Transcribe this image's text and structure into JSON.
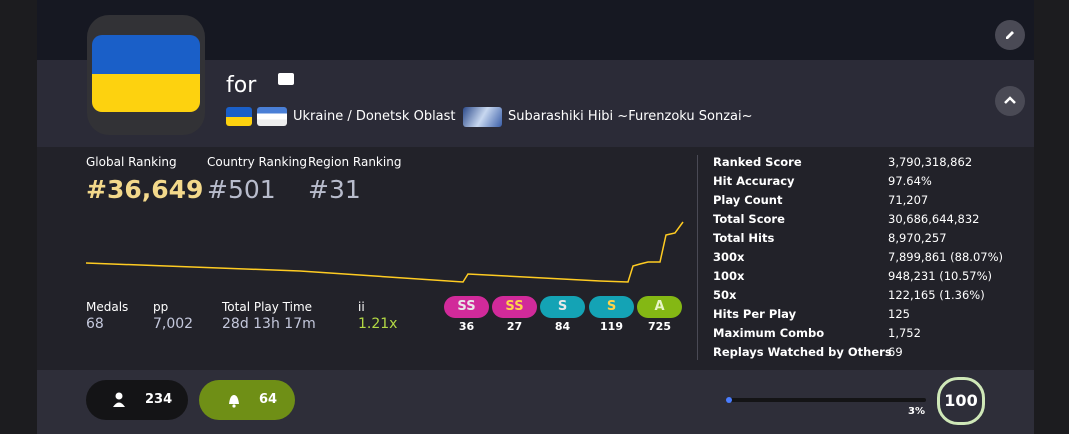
{
  "header": {
    "username": "for",
    "location": "Ukraine / Donetsk Oblast",
    "team": "Subarashiki Hibi ~Furenzoku Sonzai~"
  },
  "rankings": [
    {
      "label": "Global Ranking",
      "value": "#36,649"
    },
    {
      "label": "Country Ranking",
      "value": "#501"
    },
    {
      "label": "Region Ranking",
      "value": "#31"
    }
  ],
  "summary": [
    {
      "label": "Medals",
      "value": "68"
    },
    {
      "label": "pp",
      "value": "7,002"
    },
    {
      "label": "Total Play Time",
      "value": "28d 13h 17m"
    },
    {
      "label": "ii",
      "value": "1.21x"
    }
  ],
  "grades": [
    {
      "label": "SS",
      "count": "36"
    },
    {
      "label": "SS",
      "count": "27"
    },
    {
      "label": "S",
      "count": "84"
    },
    {
      "label": "S",
      "count": "119"
    },
    {
      "label": "A",
      "count": "725"
    }
  ],
  "stats": [
    {
      "label": "Ranked Score",
      "value": "3,790,318,862"
    },
    {
      "label": "Hit Accuracy",
      "value": "97.64%"
    },
    {
      "label": "Play Count",
      "value": "71,207"
    },
    {
      "label": "Total Score",
      "value": "30,686,644,832"
    },
    {
      "label": "Total Hits",
      "value": "8,970,257"
    },
    {
      "label": "300x",
      "value": "7,899,861 (88.07%)"
    },
    {
      "label": "100x",
      "value": "948,231 (10.57%)"
    },
    {
      "label": "50x",
      "value": "122,165 (1.36%)"
    },
    {
      "label": "Hits Per Play",
      "value": "125"
    },
    {
      "label": "Maximum Combo",
      "value": "1,752"
    },
    {
      "label": "Replays Watched by Others",
      "value": "69"
    }
  ],
  "footer": {
    "followers": "234",
    "subscribers": "64",
    "level_progress": "3%",
    "level": "100"
  }
}
